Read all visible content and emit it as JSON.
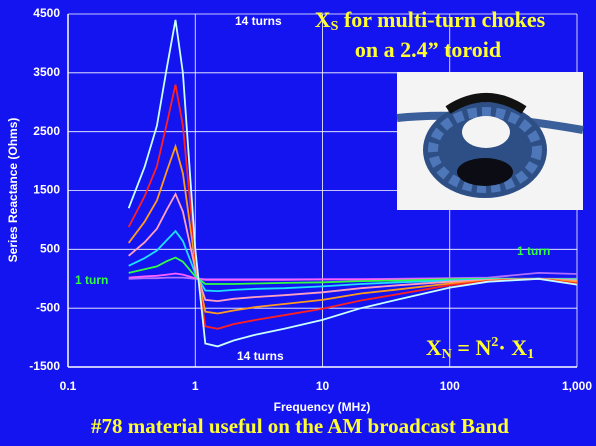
{
  "chart_data": {
    "type": "line",
    "title": {
      "symbol": "X",
      "subscript": "S",
      "line1": " for multi-turn chokes",
      "line2": "on  a 2.4” toroid"
    },
    "x_label": "Frequency  (MHz)",
    "y_label": "Series Reactance  (Ohms)",
    "caption": "#78 material useful on the AM broadcast Band",
    "formula": [
      "X",
      "N",
      " = N",
      "2",
      "·  X",
      "1"
    ],
    "annotations": [
      "14 turns",
      "14 turns",
      "1 turn",
      "1 turn"
    ],
    "log_x": true,
    "grid": true,
    "xlim": [
      0.1,
      1000
    ],
    "ylim": [
      -1500,
      4500
    ],
    "xticks": [
      0.1,
      1,
      10,
      100,
      {
        "value": 1000,
        "label": "1,000"
      }
    ],
    "yticks": [
      -1500,
      -500,
      500,
      1500,
      2500,
      3500,
      4500
    ],
    "x": [
      0.3,
      0.4,
      0.5,
      0.6,
      0.7,
      0.8,
      1,
      1.2,
      1.5,
      2,
      3,
      5,
      10,
      20,
      40,
      100,
      200,
      500,
      1000
    ],
    "series": [
      {
        "color": "#c8ffff",
        "values": [
          1200,
          1900,
          2600,
          3600,
          4400,
          3500,
          500,
          -1100,
          -1150,
          -1050,
          -950,
          -850,
          -700,
          -500,
          -350,
          -150,
          -50,
          0,
          -100
        ]
      },
      {
        "color": "#ff2020",
        "values": [
          880,
          1400,
          1910,
          2650,
          3300,
          2600,
          370,
          -810,
          -850,
          -770,
          -700,
          -620,
          -510,
          -370,
          -260,
          -110,
          -40,
          0,
          -80
        ]
      },
      {
        "color": "#ff9a20",
        "values": [
          610,
          970,
          1330,
          1840,
          2250,
          1790,
          260,
          -560,
          -590,
          -540,
          -480,
          -430,
          -360,
          -250,
          -180,
          -80,
          -30,
          0,
          -50
        ]
      },
      {
        "color": "#ffa0c0",
        "values": [
          390,
          620,
          850,
          1180,
          1440,
          1140,
          160,
          -360,
          -380,
          -340,
          -310,
          -280,
          -230,
          -160,
          -110,
          -50,
          -20,
          0,
          -30
        ]
      },
      {
        "color": "#20e0ff",
        "values": [
          220,
          350,
          480,
          660,
          810,
          640,
          90,
          -200,
          -210,
          -190,
          -170,
          -160,
          -130,
          -90,
          -60,
          -30,
          -10,
          0,
          -20
        ]
      },
      {
        "color": "#30ff40",
        "values": [
          100,
          160,
          210,
          300,
          360,
          290,
          40,
          -90,
          -90,
          -90,
          -80,
          -70,
          -60,
          -40,
          -30,
          -10,
          0,
          0,
          -10
        ]
      },
      {
        "color": "#ff60ff",
        "values": [
          20,
          40,
          50,
          70,
          90,
          70,
          10,
          -20,
          -20,
          -20,
          -20,
          -20,
          -10,
          -10,
          -10,
          0,
          0,
          0,
          0
        ]
      },
      {
        "color": "#b070ff",
        "values": [
          0,
          10,
          10,
          20,
          20,
          20,
          0,
          -10,
          -10,
          -10,
          -10,
          -10,
          -10,
          -10,
          0,
          10,
          20,
          100,
          80
        ]
      }
    ]
  }
}
